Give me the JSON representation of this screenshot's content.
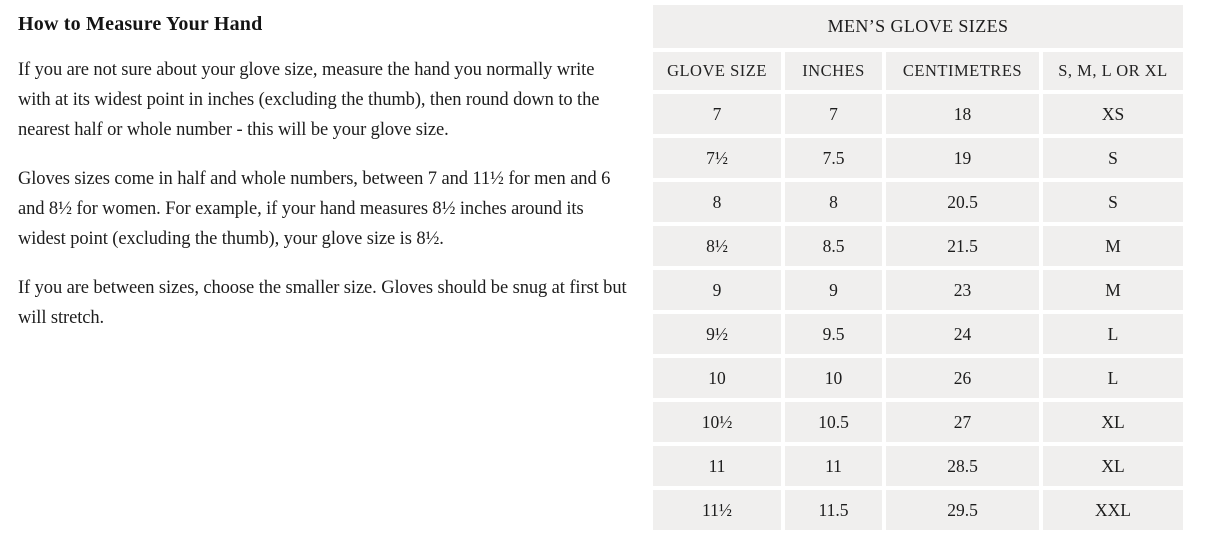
{
  "article": {
    "heading": "How to Measure Your Hand",
    "paragraphs": [
      "If you are not sure about your glove size, measure the hand you normally write with at its widest point in inches (excluding the thumb), then round down to the nearest half or whole number - this will be your glove size.",
      "Gloves sizes come in half and whole numbers, between 7 and 11½ for men and 6 and 8½ for women. For example, if your hand measures 8½ inches around its widest point (excluding the thumb), your glove size is 8½.",
      "If you are between sizes, choose the smaller size. Gloves should be snug at first but will stretch."
    ]
  },
  "size_table": {
    "title": "MEN’S GLOVE SIZES",
    "columns": [
      "GLOVE SIZE",
      "INCHES",
      "CENTIMETRES",
      "S, M, L OR XL"
    ],
    "rows": [
      [
        "7",
        "7",
        "18",
        "XS"
      ],
      [
        "7½",
        "7.5",
        "19",
        "S"
      ],
      [
        "8",
        "8",
        "20.5",
        "S"
      ],
      [
        "8½",
        "8.5",
        "21.5",
        "M"
      ],
      [
        "9",
        "9",
        "23",
        "M"
      ],
      [
        "9½",
        "9.5",
        "24",
        "L"
      ],
      [
        "10",
        "10",
        "26",
        "L"
      ],
      [
        "10½",
        "10.5",
        "27",
        "XL"
      ],
      [
        "11",
        "11",
        "28.5",
        "XL"
      ],
      [
        "11½",
        "11.5",
        "29.5",
        "XXL"
      ]
    ]
  },
  "colors": {
    "page_background": "#ffffff",
    "cell_background": "#f0efee",
    "text": "#1d1d1d"
  }
}
